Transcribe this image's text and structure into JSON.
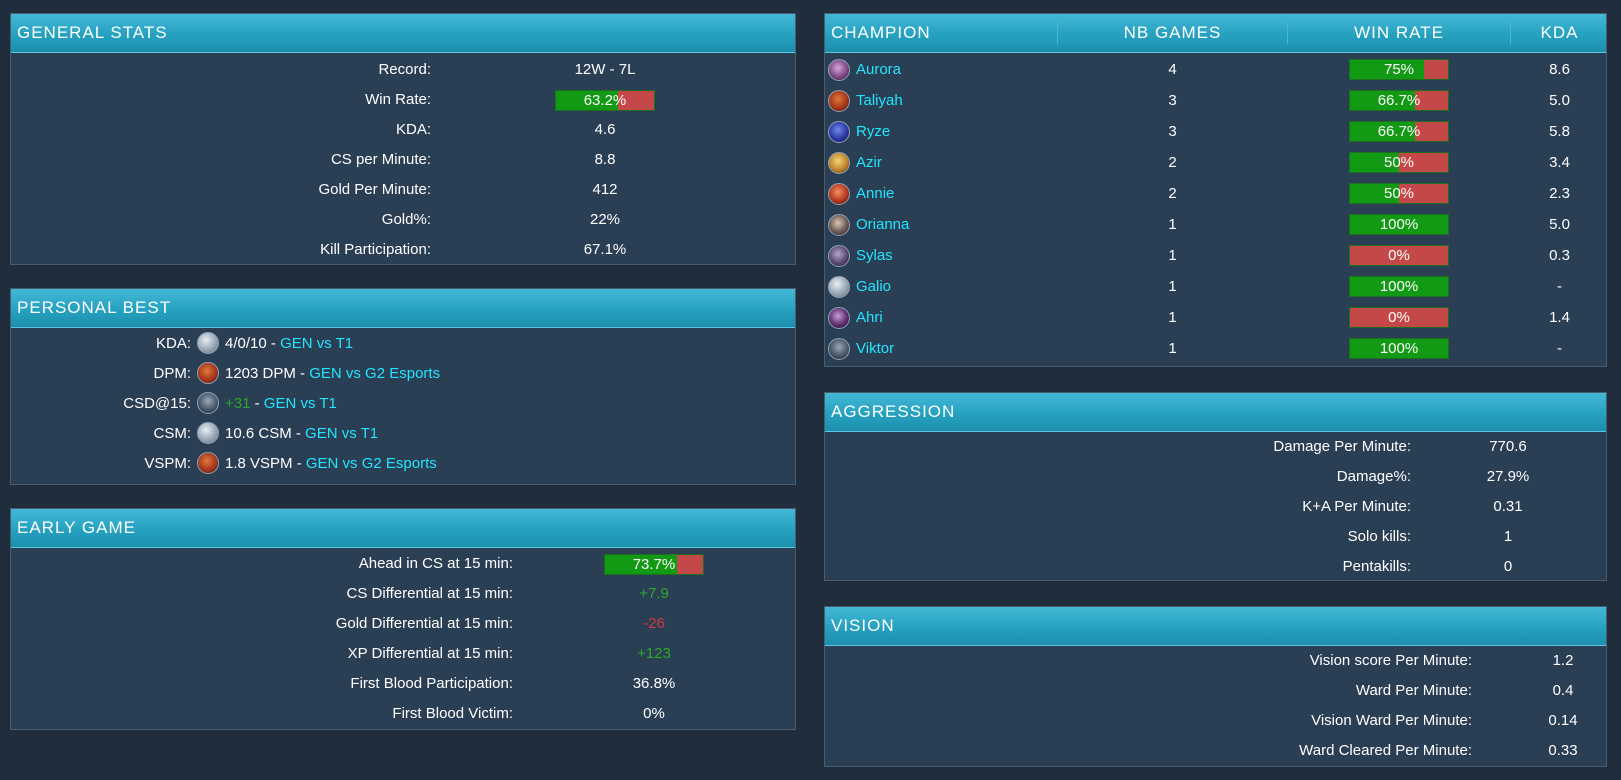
{
  "general_stats": {
    "title": "GENERAL STATS",
    "rows": [
      {
        "label": "Record:",
        "value": "12W - 7L"
      },
      {
        "label": "Win Rate:",
        "value": "63.2%",
        "bar": 0.632
      },
      {
        "label": "KDA:",
        "value": "4.6"
      },
      {
        "label": "CS per Minute:",
        "value": "8.8"
      },
      {
        "label": "Gold Per Minute:",
        "value": "412"
      },
      {
        "label": "Gold%:",
        "value": "22%"
      },
      {
        "label": "Kill Participation:",
        "value": "67.1%"
      }
    ]
  },
  "personal_best": {
    "title": "PERSONAL BEST",
    "rows": [
      {
        "label": "KDA:",
        "icon": "galio-icon",
        "value": "4/0/10",
        "sep": " - ",
        "link": "GEN vs T1"
      },
      {
        "label": "DPM:",
        "icon": "taliyah-icon",
        "value": "1203 DPM",
        "sep": " - ",
        "link": "GEN vs G2 Esports"
      },
      {
        "label": "CSD@15:",
        "icon": "viktor-icon",
        "value": "+31",
        "sep": " - ",
        "link": "GEN vs T1"
      },
      {
        "label": "CSM:",
        "icon": "galio-icon",
        "value": "10.6 CSM",
        "sep": " - ",
        "link": "GEN vs T1"
      },
      {
        "label": "VSPM:",
        "icon": "taliyah-icon",
        "value": "1.8 VSPM",
        "sep": " - ",
        "link": "GEN vs G2 Esports"
      }
    ]
  },
  "early_game": {
    "title": "EARLY GAME",
    "rows": [
      {
        "label": "Ahead in CS at 15 min:",
        "value": "73.7%",
        "bar": 0.737
      },
      {
        "label": "CS Differential at 15 min:",
        "value": "+7.9",
        "tone": "pos"
      },
      {
        "label": "Gold Differential at 15 min:",
        "value": "-26",
        "tone": "neg"
      },
      {
        "label": "XP Differential at 15 min:",
        "value": "+123",
        "tone": "pos"
      },
      {
        "label": "First Blood Participation:",
        "value": "36.8%"
      },
      {
        "label": "First Blood Victim:",
        "value": "0%"
      }
    ]
  },
  "champions": {
    "headers": {
      "champion": "CHAMPION",
      "games": "NB GAMES",
      "winrate": "WIN RATE",
      "kda": "KDA"
    },
    "rows": [
      {
        "name": "Aurora",
        "icon": "aurora-icon",
        "games": "4",
        "winrate": "75%",
        "wr": 0.75,
        "kda": "8.6"
      },
      {
        "name": "Taliyah",
        "icon": "taliyah-icon",
        "games": "3",
        "winrate": "66.7%",
        "wr": 0.667,
        "kda": "5.0"
      },
      {
        "name": "Ryze",
        "icon": "ryze-icon",
        "games": "3",
        "winrate": "66.7%",
        "wr": 0.667,
        "kda": "5.8"
      },
      {
        "name": "Azir",
        "icon": "azir-icon",
        "games": "2",
        "winrate": "50%",
        "wr": 0.5,
        "kda": "3.4"
      },
      {
        "name": "Annie",
        "icon": "annie-icon",
        "games": "2",
        "winrate": "50%",
        "wr": 0.5,
        "kda": "2.3"
      },
      {
        "name": "Orianna",
        "icon": "orianna-icon",
        "games": "1",
        "winrate": "100%",
        "wr": 1.0,
        "kda": "5.0"
      },
      {
        "name": "Sylas",
        "icon": "sylas-icon",
        "games": "1",
        "winrate": "0%",
        "wr": 0.0,
        "kda": "0.3"
      },
      {
        "name": "Galio",
        "icon": "galio-icon",
        "games": "1",
        "winrate": "100%",
        "wr": 1.0,
        "kda": "-"
      },
      {
        "name": "Ahri",
        "icon": "ahri-icon",
        "games": "1",
        "winrate": "0%",
        "wr": 0.0,
        "kda": "1.4"
      },
      {
        "name": "Viktor",
        "icon": "viktor-icon",
        "games": "1",
        "winrate": "100%",
        "wr": 1.0,
        "kda": "-"
      }
    ]
  },
  "aggression": {
    "title": "AGGRESSION",
    "rows": [
      {
        "label": "Damage Per Minute:",
        "value": "770.6"
      },
      {
        "label": "Damage%:",
        "value": "27.9%"
      },
      {
        "label": "K+A Per Minute:",
        "value": "0.31"
      },
      {
        "label": "Solo kills:",
        "value": "1"
      },
      {
        "label": "Pentakills:",
        "value": "0"
      }
    ]
  },
  "vision": {
    "title": "VISION",
    "rows": [
      {
        "label": "Vision score Per Minute:",
        "value": "1.2"
      },
      {
        "label": "Ward Per Minute:",
        "value": "0.4"
      },
      {
        "label": "Vision Ward Per Minute:",
        "value": "0.14"
      },
      {
        "label": "Ward Cleared Per Minute:",
        "value": "0.33"
      }
    ]
  },
  "colors": {
    "bar_win": "#139a14",
    "bar_loss": "#c44848",
    "link": "#21e6ff",
    "positive": "#2aa92a",
    "negative": "#cc3b3b"
  }
}
